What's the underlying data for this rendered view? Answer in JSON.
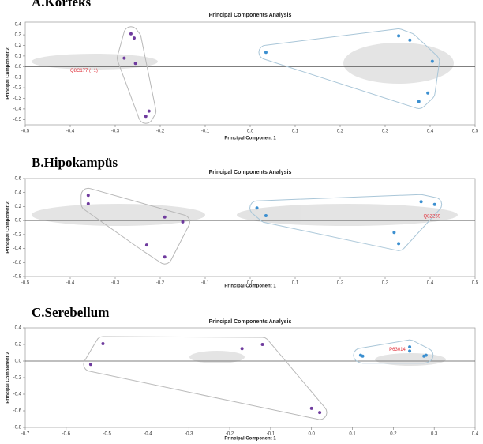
{
  "chart_data": [
    {
      "type": "scatter",
      "panel_title": "A.Korteks",
      "title": "Principal Components Analysis",
      "x_label": "Principal Component 1",
      "y_label": "Principal Component 2",
      "xlim": [
        -0.5,
        0.5
      ],
      "ylim": [
        -0.55,
        0.42
      ],
      "xticks": [
        -0.5,
        -0.4,
        -0.3,
        -0.2,
        -0.1,
        {
          "value": 0,
          "label": "0.0"
        },
        0.1,
        0.2,
        0.3,
        0.4,
        0.5
      ],
      "yticks": [
        0.4,
        0.3,
        0.2,
        0.1,
        {
          "value": 0,
          "label": "0.0"
        },
        -0.1,
        -0.2,
        -0.3,
        -0.4,
        -0.5
      ],
      "series": [
        {
          "color": "#6f3b9e",
          "hull_color": "#b8b8b8",
          "x": [
            -0.265,
            -0.258,
            -0.28,
            -0.255,
            -0.225,
            -0.232
          ],
          "y": [
            0.31,
            0.27,
            0.08,
            0.03,
            -0.42,
            -0.47
          ]
        },
        {
          "color": "#3b8fd0",
          "hull_color": "#a9c6d8",
          "x": [
            0.035,
            0.33,
            0.355,
            0.375,
            0.395,
            0.405
          ],
          "y": [
            0.135,
            0.29,
            0.25,
            -0.33,
            -0.25,
            0.05
          ]
        }
      ],
      "annotations": [
        {
          "text": "Q8C177 (+1)",
          "x": -0.4,
          "y": -0.04
        }
      ]
    },
    {
      "type": "scatter",
      "panel_title": "B.Hipokampüs",
      "title": "Principal Components Analysis",
      "x_label": "Principal Component 1",
      "y_label": "Principal Component 2",
      "xlim": [
        -0.5,
        0.5
      ],
      "ylim": [
        -0.8,
        0.6
      ],
      "xticks": [
        -0.5,
        -0.4,
        -0.3,
        -0.2,
        -0.1,
        {
          "value": 0,
          "label": "0.0"
        },
        0.1,
        0.2,
        0.3,
        0.4,
        0.5
      ],
      "yticks": [
        0.6,
        0.4,
        0.2,
        {
          "value": 0,
          "label": "0.0"
        },
        -0.2,
        -0.4,
        -0.6,
        -0.8
      ],
      "series": [
        {
          "color": "#6f3b9e",
          "hull_color": "#b8b8b8",
          "x": [
            -0.36,
            -0.36,
            -0.23,
            -0.19,
            -0.19,
            -0.15
          ],
          "y": [
            0.36,
            0.24,
            -0.35,
            -0.52,
            0.05,
            -0.02
          ]
        },
        {
          "color": "#3b8fd0",
          "hull_color": "#a9c6d8",
          "x": [
            0.015,
            0.035,
            0.32,
            0.33,
            0.38,
            0.41
          ],
          "y": [
            0.18,
            0.07,
            -0.17,
            -0.33,
            0.27,
            0.23
          ]
        }
      ],
      "annotations": [
        {
          "text": "Q8Z269",
          "x": 0.385,
          "y": 0.06
        }
      ]
    },
    {
      "type": "scatter",
      "panel_title": "C.Serebellum",
      "title": "Principal Components Analysis",
      "x_label": "Principal Component 1",
      "y_label": "Principal Component 2",
      "xlim": [
        -0.7,
        0.4
      ],
      "ylim": [
        -0.8,
        0.4
      ],
      "xticks": [
        -0.7,
        -0.6,
        -0.5,
        -0.4,
        -0.3,
        -0.2,
        -0.1,
        {
          "value": 0,
          "label": "0.0"
        },
        0.1,
        0.2,
        0.3,
        0.4
      ],
      "yticks": [
        0.4,
        0.2,
        {
          "value": 0,
          "label": "0.0"
        },
        -0.2,
        -0.4,
        -0.6,
        -0.8
      ],
      "series": [
        {
          "color": "#6f3b9e",
          "hull_color": "#b8b8b8",
          "x": [
            -0.51,
            -0.54,
            -0.17,
            -0.12,
            0,
            0.02
          ],
          "y": [
            0.21,
            -0.04,
            0.15,
            0.2,
            -0.57,
            -0.62
          ]
        },
        {
          "color": "#3b8fd0",
          "hull_color": "#a9c6d8",
          "x": [
            0.12,
            0.125,
            0.24,
            0.24,
            0.275,
            0.28
          ],
          "y": [
            0.07,
            0.06,
            0.17,
            0.12,
            0.06,
            0.07
          ]
        }
      ],
      "annotations": [
        {
          "text": "P63014",
          "x": 0.19,
          "y": 0.14
        }
      ]
    }
  ]
}
